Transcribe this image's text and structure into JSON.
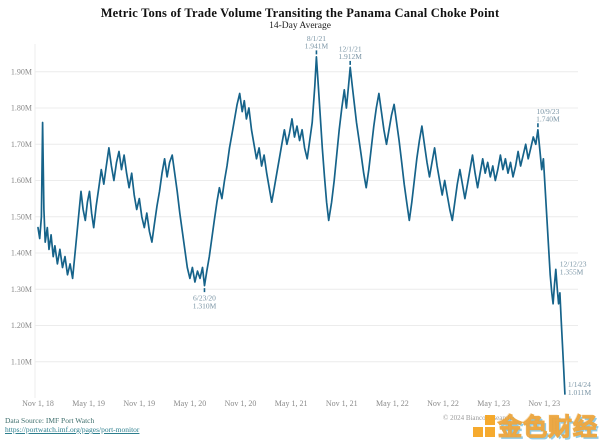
{
  "header": {
    "title": "Metric Tons of Trade Volume Transiting the Panama Canal Choke Point",
    "subtitle": "14-Day Average"
  },
  "footer": {
    "source_label": "Data Source: IMF Port Watch",
    "source_url": "https://portwatch.imf.org/pages/port-monitor",
    "copyright": "© 2024 BiancoResearch",
    "watermark_text": "金色财经",
    "watermark_color": "#f6a623"
  },
  "colors": {
    "line": "#16638a",
    "grid": "#ececec",
    "axis_text": "#8a8a8a",
    "annotation_text": "#7b95a5",
    "background": "#ffffff"
  },
  "chart_data": {
    "type": "line",
    "title": "Metric Tons of Trade Volume Transiting the Panama Canal Choke Point",
    "subtitle": "14-Day Average",
    "xlabel": "",
    "ylabel": "",
    "x_unit": "months since Nov 1, 2018",
    "xlim": [
      0,
      64
    ],
    "ylim": [
      1.0,
      1.96
    ],
    "grid": "horizontal",
    "legend": "none",
    "y_ticks": [
      {
        "v": 1.1,
        "label": "1.10M"
      },
      {
        "v": 1.2,
        "label": "1.20M"
      },
      {
        "v": 1.3,
        "label": "1.30M"
      },
      {
        "v": 1.4,
        "label": "1.40M"
      },
      {
        "v": 1.5,
        "label": "1.50M"
      },
      {
        "v": 1.6,
        "label": "1.60M"
      },
      {
        "v": 1.7,
        "label": "1.70M"
      },
      {
        "v": 1.8,
        "label": "1.80M"
      },
      {
        "v": 1.9,
        "label": "1.90M"
      }
    ],
    "x_ticks": [
      {
        "m": 0,
        "label": "Nov 1, 18"
      },
      {
        "m": 6,
        "label": "May 1, 19"
      },
      {
        "m": 12,
        "label": "Nov 1, 19"
      },
      {
        "m": 18,
        "label": "May 1, 20"
      },
      {
        "m": 24,
        "label": "Nov 1, 20"
      },
      {
        "m": 30,
        "label": "May 1, 21"
      },
      {
        "m": 36,
        "label": "Nov 1, 21"
      },
      {
        "m": 42,
        "label": "May 1, 22"
      },
      {
        "m": 48,
        "label": "Nov 1, 22"
      },
      {
        "m": 54,
        "label": "May 1, 23"
      },
      {
        "m": 60,
        "label": "Nov 1, 23"
      }
    ],
    "annotations": [
      {
        "date": "8/1/21",
        "value": "1.941M",
        "x": 33.0,
        "v": 1.941,
        "placement": "above",
        "dx": 0
      },
      {
        "date": "12/1/21",
        "value": "1.912M",
        "x": 37.0,
        "v": 1.912,
        "placement": "above",
        "dx": 0
      },
      {
        "date": "6/23/20",
        "value": "1.310M",
        "x": 19.73,
        "v": 1.31,
        "placement": "below",
        "dx": 0
      },
      {
        "date": "10/9/23",
        "value": "1.740M",
        "x": 59.25,
        "v": 1.74,
        "placement": "above",
        "dx": 10
      },
      {
        "date": "12/12/23",
        "value": "1.355M",
        "x": 61.37,
        "v": 1.355,
        "placement": "right",
        "dx": 4
      },
      {
        "date": "1/14/24",
        "value": "1.011M",
        "x": 62.45,
        "v": 1.011,
        "placement": "right-below",
        "dx": 3
      }
    ],
    "series": [
      {
        "name": "14-day average trade volume (metric tons)",
        "points": [
          [
            0,
            1.47
          ],
          [
            0.2,
            1.44
          ],
          [
            0.4,
            1.5
          ],
          [
            0.55,
            1.76
          ],
          [
            0.7,
            1.52
          ],
          [
            0.85,
            1.43
          ],
          [
            1.1,
            1.47
          ],
          [
            1.3,
            1.41
          ],
          [
            1.55,
            1.45
          ],
          [
            1.8,
            1.39
          ],
          [
            2,
            1.42
          ],
          [
            2.3,
            1.37
          ],
          [
            2.6,
            1.41
          ],
          [
            2.9,
            1.36
          ],
          [
            3.2,
            1.39
          ],
          [
            3.5,
            1.34
          ],
          [
            3.8,
            1.37
          ],
          [
            4.1,
            1.33
          ],
          [
            4.35,
            1.39
          ],
          [
            4.6,
            1.45
          ],
          [
            4.85,
            1.51
          ],
          [
            5.1,
            1.57
          ],
          [
            5.35,
            1.52
          ],
          [
            5.6,
            1.49
          ],
          [
            5.85,
            1.54
          ],
          [
            6.1,
            1.57
          ],
          [
            6.35,
            1.51
          ],
          [
            6.6,
            1.47
          ],
          [
            6.9,
            1.53
          ],
          [
            7.2,
            1.58
          ],
          [
            7.5,
            1.63
          ],
          [
            7.8,
            1.59
          ],
          [
            8.1,
            1.64
          ],
          [
            8.4,
            1.69
          ],
          [
            8.7,
            1.64
          ],
          [
            9,
            1.6
          ],
          [
            9.3,
            1.65
          ],
          [
            9.6,
            1.68
          ],
          [
            9.9,
            1.63
          ],
          [
            10.2,
            1.67
          ],
          [
            10.5,
            1.62
          ],
          [
            10.8,
            1.58
          ],
          [
            11.1,
            1.62
          ],
          [
            11.4,
            1.56
          ],
          [
            11.7,
            1.52
          ],
          [
            12,
            1.55
          ],
          [
            12.3,
            1.5
          ],
          [
            12.6,
            1.47
          ],
          [
            12.9,
            1.51
          ],
          [
            13.2,
            1.46
          ],
          [
            13.5,
            1.43
          ],
          [
            13.8,
            1.48
          ],
          [
            14.1,
            1.53
          ],
          [
            14.4,
            1.57
          ],
          [
            14.7,
            1.62
          ],
          [
            15,
            1.66
          ],
          [
            15.3,
            1.61
          ],
          [
            15.6,
            1.65
          ],
          [
            15.9,
            1.67
          ],
          [
            16.2,
            1.62
          ],
          [
            16.5,
            1.57
          ],
          [
            16.8,
            1.51
          ],
          [
            17.1,
            1.46
          ],
          [
            17.4,
            1.41
          ],
          [
            17.7,
            1.36
          ],
          [
            18,
            1.33
          ],
          [
            18.3,
            1.36
          ],
          [
            18.6,
            1.32
          ],
          [
            18.9,
            1.35
          ],
          [
            19.2,
            1.33
          ],
          [
            19.5,
            1.36
          ],
          [
            19.73,
            1.31
          ],
          [
            20,
            1.35
          ],
          [
            20.3,
            1.39
          ],
          [
            20.6,
            1.44
          ],
          [
            20.9,
            1.49
          ],
          [
            21.2,
            1.54
          ],
          [
            21.5,
            1.58
          ],
          [
            21.8,
            1.55
          ],
          [
            22.1,
            1.6
          ],
          [
            22.4,
            1.64
          ],
          [
            22.7,
            1.69
          ],
          [
            23,
            1.73
          ],
          [
            23.3,
            1.77
          ],
          [
            23.6,
            1.81
          ],
          [
            23.9,
            1.84
          ],
          [
            24.2,
            1.79
          ],
          [
            24.45,
            1.82
          ],
          [
            24.7,
            1.77
          ],
          [
            25,
            1.8
          ],
          [
            25.3,
            1.74
          ],
          [
            25.6,
            1.7
          ],
          [
            25.9,
            1.66
          ],
          [
            26.2,
            1.69
          ],
          [
            26.5,
            1.64
          ],
          [
            26.8,
            1.67
          ],
          [
            27.1,
            1.62
          ],
          [
            27.4,
            1.58
          ],
          [
            27.7,
            1.54
          ],
          [
            28,
            1.58
          ],
          [
            28.3,
            1.62
          ],
          [
            28.6,
            1.66
          ],
          [
            28.9,
            1.7
          ],
          [
            29.2,
            1.74
          ],
          [
            29.5,
            1.7
          ],
          [
            29.8,
            1.73
          ],
          [
            30.1,
            1.77
          ],
          [
            30.4,
            1.72
          ],
          [
            30.7,
            1.75
          ],
          [
            31,
            1.71
          ],
          [
            31.3,
            1.74
          ],
          [
            31.6,
            1.69
          ],
          [
            31.9,
            1.66
          ],
          [
            32.2,
            1.71
          ],
          [
            32.5,
            1.76
          ],
          [
            32.8,
            1.86
          ],
          [
            33,
            1.941
          ],
          [
            33.2,
            1.87
          ],
          [
            33.45,
            1.78
          ],
          [
            33.7,
            1.69
          ],
          [
            33.95,
            1.61
          ],
          [
            34.2,
            1.54
          ],
          [
            34.45,
            1.49
          ],
          [
            34.8,
            1.54
          ],
          [
            35.1,
            1.6
          ],
          [
            35.4,
            1.67
          ],
          [
            35.7,
            1.74
          ],
          [
            36,
            1.8
          ],
          [
            36.3,
            1.85
          ],
          [
            36.55,
            1.8
          ],
          [
            36.8,
            1.86
          ],
          [
            37,
            1.912
          ],
          [
            37.25,
            1.86
          ],
          [
            37.5,
            1.81
          ],
          [
            37.75,
            1.76
          ],
          [
            38,
            1.72
          ],
          [
            38.3,
            1.67
          ],
          [
            38.6,
            1.62
          ],
          [
            38.9,
            1.58
          ],
          [
            39.2,
            1.63
          ],
          [
            39.5,
            1.69
          ],
          [
            39.8,
            1.75
          ],
          [
            40.1,
            1.8
          ],
          [
            40.4,
            1.84
          ],
          [
            40.7,
            1.79
          ],
          [
            41,
            1.74
          ],
          [
            41.3,
            1.7
          ],
          [
            41.6,
            1.74
          ],
          [
            41.9,
            1.78
          ],
          [
            42.2,
            1.81
          ],
          [
            42.5,
            1.76
          ],
          [
            42.8,
            1.71
          ],
          [
            43.1,
            1.65
          ],
          [
            43.4,
            1.59
          ],
          [
            43.7,
            1.54
          ],
          [
            44,
            1.49
          ],
          [
            44.3,
            1.54
          ],
          [
            44.6,
            1.6
          ],
          [
            44.9,
            1.66
          ],
          [
            45.2,
            1.71
          ],
          [
            45.5,
            1.75
          ],
          [
            45.8,
            1.7
          ],
          [
            46.1,
            1.65
          ],
          [
            46.4,
            1.61
          ],
          [
            46.7,
            1.65
          ],
          [
            47,
            1.69
          ],
          [
            47.3,
            1.64
          ],
          [
            47.6,
            1.6
          ],
          [
            47.9,
            1.56
          ],
          [
            48.2,
            1.6
          ],
          [
            48.5,
            1.56
          ],
          [
            48.8,
            1.52
          ],
          [
            49.1,
            1.49
          ],
          [
            49.4,
            1.54
          ],
          [
            49.7,
            1.59
          ],
          [
            50,
            1.63
          ],
          [
            50.3,
            1.59
          ],
          [
            50.6,
            1.55
          ],
          [
            50.9,
            1.59
          ],
          [
            51.2,
            1.63
          ],
          [
            51.5,
            1.67
          ],
          [
            51.8,
            1.62
          ],
          [
            52.1,
            1.58
          ],
          [
            52.4,
            1.62
          ],
          [
            52.7,
            1.66
          ],
          [
            53,
            1.62
          ],
          [
            53.3,
            1.65
          ],
          [
            53.6,
            1.61
          ],
          [
            53.9,
            1.64
          ],
          [
            54.2,
            1.6
          ],
          [
            54.5,
            1.63
          ],
          [
            54.8,
            1.67
          ],
          [
            55.1,
            1.63
          ],
          [
            55.4,
            1.66
          ],
          [
            55.7,
            1.62
          ],
          [
            56,
            1.65
          ],
          [
            56.3,
            1.61
          ],
          [
            56.6,
            1.64
          ],
          [
            56.9,
            1.68
          ],
          [
            57.2,
            1.64
          ],
          [
            57.5,
            1.67
          ],
          [
            57.8,
            1.7
          ],
          [
            58.1,
            1.66
          ],
          [
            58.4,
            1.69
          ],
          [
            58.7,
            1.72
          ],
          [
            59,
            1.7
          ],
          [
            59.25,
            1.74
          ],
          [
            59.5,
            1.68
          ],
          [
            59.7,
            1.63
          ],
          [
            59.9,
            1.66
          ],
          [
            60.1,
            1.58
          ],
          [
            60.3,
            1.5
          ],
          [
            60.5,
            1.42
          ],
          [
            60.7,
            1.34
          ],
          [
            60.9,
            1.29
          ],
          [
            61.05,
            1.26
          ],
          [
            61.2,
            1.31
          ],
          [
            61.37,
            1.355
          ],
          [
            61.55,
            1.3
          ],
          [
            61.7,
            1.26
          ],
          [
            61.85,
            1.29
          ],
          [
            62,
            1.22
          ],
          [
            62.15,
            1.15
          ],
          [
            62.3,
            1.08
          ],
          [
            62.45,
            1.011
          ]
        ]
      }
    ]
  }
}
